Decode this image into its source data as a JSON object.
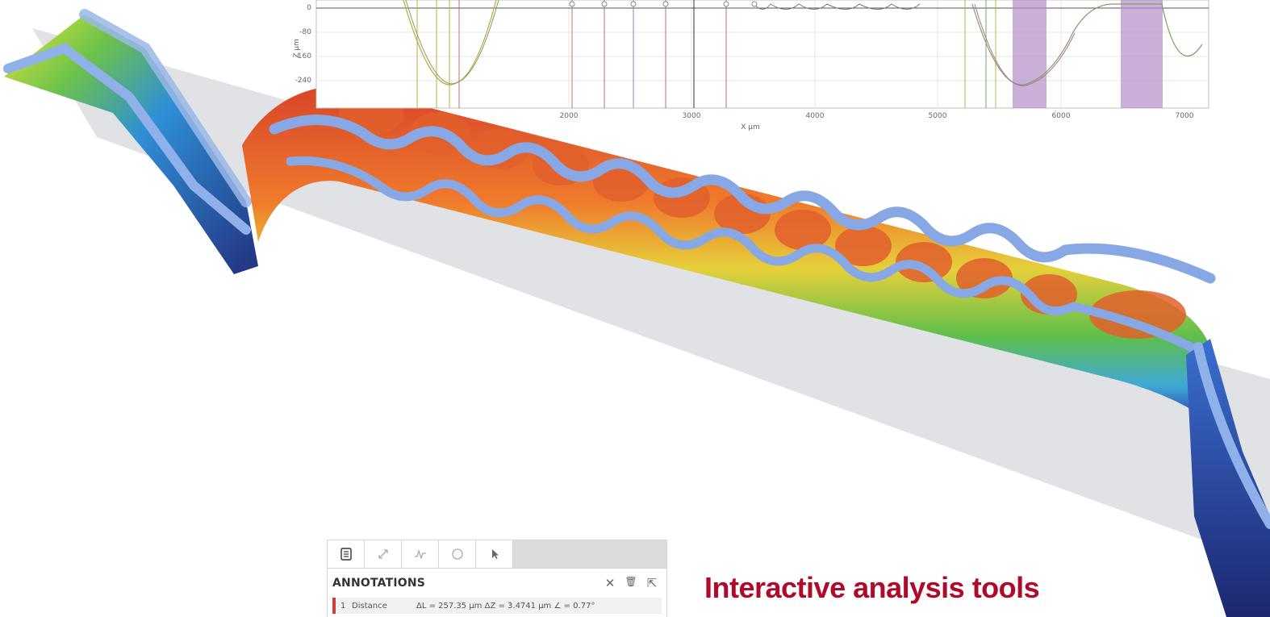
{
  "headline": "Interactive analysis tools",
  "colors": {
    "accent": "#b00a2a",
    "marker": "#c8423a"
  },
  "profile_chart": {
    "y_axis_label": "Z µm",
    "x_axis_label": "X µm",
    "y_ticks": [
      "0",
      "-80",
      "-160",
      "-240"
    ],
    "x_ticks": [
      "2000",
      "3000",
      "4000",
      "5000",
      "6000",
      "7000"
    ]
  },
  "tool_panel": {
    "tabs": [
      {
        "name": "annotations",
        "icon": "document-icon",
        "active": true
      },
      {
        "name": "distance",
        "icon": "diagonal-arrow-icon",
        "active": false
      },
      {
        "name": "profile",
        "icon": "profile-wave-icon",
        "active": false
      },
      {
        "name": "area",
        "icon": "circle-icon",
        "active": false
      },
      {
        "name": "select",
        "icon": "cursor-icon",
        "active": false
      }
    ],
    "title": "ANNOTATIONS",
    "actions": [
      {
        "name": "close",
        "glyph": "✕"
      },
      {
        "name": "delete",
        "glyph": "🗑"
      },
      {
        "name": "export",
        "glyph": "⇱"
      }
    ],
    "rows": [
      {
        "index": "1",
        "type": "Distance",
        "value": "ΔL = 257.35 µm ΔZ = 3.4741 µm  ∠ = 0.77°"
      }
    ]
  }
}
